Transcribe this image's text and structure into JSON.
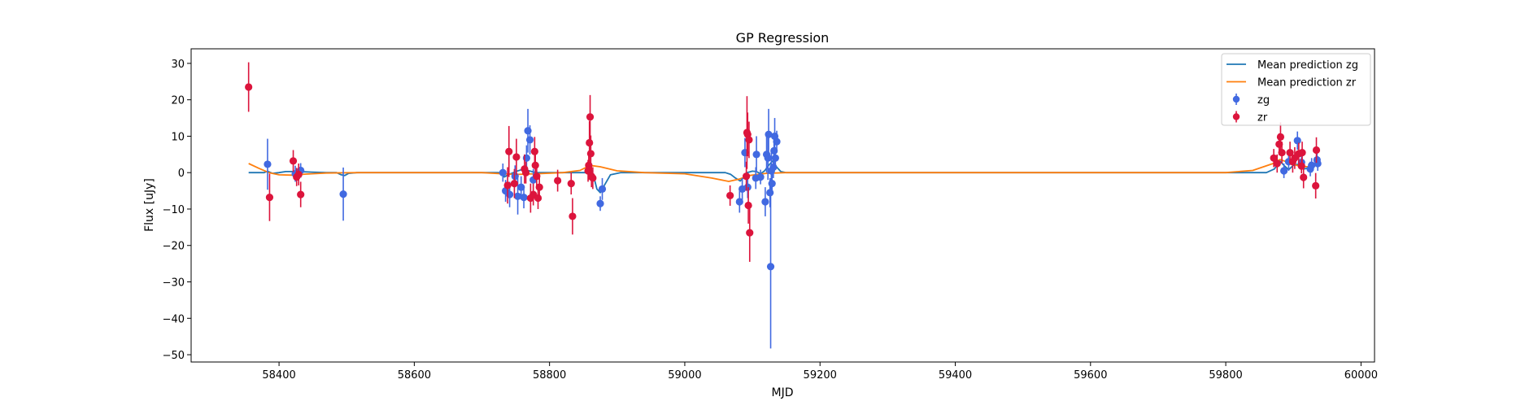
{
  "chart_data": {
    "type": "scatter",
    "title": "GP Regression",
    "xlabel": "MJD",
    "ylabel": "Flux [uJy]",
    "xlim": [
      58270,
      60020
    ],
    "ylim": [
      -52,
      34
    ],
    "xticks": [
      58400,
      58600,
      58800,
      59000,
      59200,
      59400,
      59600,
      59800,
      60000
    ],
    "yticks": [
      -50,
      -40,
      -30,
      -20,
      -10,
      0,
      10,
      20,
      30
    ],
    "xtick_labels": [
      "58400",
      "58600",
      "58800",
      "59000",
      "59200",
      "59400",
      "59600",
      "59800",
      "60000"
    ],
    "ytick_labels": [
      "−50",
      "−40",
      "−30",
      "−20",
      "−10",
      "0",
      "10",
      "20",
      "30"
    ],
    "grid": false,
    "legend": {
      "position": "top-right",
      "entries": [
        {
          "label": "Mean prediction zg",
          "kind": "line",
          "color": "#1f77b4"
        },
        {
          "label": "Mean prediction zr",
          "kind": "line",
          "color": "#ff7f0e"
        },
        {
          "label": "zg",
          "kind": "errorbar",
          "color": "#4169e1"
        },
        {
          "label": "zr",
          "kind": "errorbar",
          "color": "#dc143c"
        }
      ]
    },
    "lines": [
      {
        "name": "Mean prediction zg",
        "color": "#1f77b4",
        "points": [
          [
            58355,
            0.0
          ],
          [
            58378,
            0.0
          ],
          [
            58383,
            0.4
          ],
          [
            58390,
            -0.2
          ],
          [
            58400,
            0.0
          ],
          [
            58410,
            0.3
          ],
          [
            58425,
            0.3
          ],
          [
            58440,
            0.2
          ],
          [
            58470,
            0.0
          ],
          [
            58485,
            0.0
          ],
          [
            58492,
            -0.6
          ],
          [
            58497,
            -0.8
          ],
          [
            58503,
            -0.2
          ],
          [
            58515,
            0.0
          ],
          [
            58700,
            0.0
          ],
          [
            58725,
            0.0
          ],
          [
            58733,
            -1.2
          ],
          [
            58740,
            -0.5
          ],
          [
            58750,
            0.3
          ],
          [
            58762,
            1.0
          ],
          [
            58770,
            0.5
          ],
          [
            58780,
            0.0
          ],
          [
            58830,
            0.0
          ],
          [
            58855,
            0.0
          ],
          [
            58862,
            0.8
          ],
          [
            58866,
            -1.5
          ],
          [
            58870,
            -4.5
          ],
          [
            58875,
            -5.5
          ],
          [
            58881,
            -3.5
          ],
          [
            58890,
            -0.6
          ],
          [
            58905,
            0.0
          ],
          [
            59060,
            0.0
          ],
          [
            59068,
            -0.5
          ],
          [
            59075,
            -1.5
          ],
          [
            59082,
            -2.3
          ],
          [
            59088,
            -1.2
          ],
          [
            59092,
            0.0
          ],
          [
            59100,
            0.4
          ],
          [
            59106,
            0.3
          ],
          [
            59112,
            -0.3
          ],
          [
            59118,
            0.5
          ],
          [
            59124,
            2.0
          ],
          [
            59130,
            3.2
          ],
          [
            59136,
            1.5
          ],
          [
            59142,
            0.3
          ],
          [
            59150,
            0.0
          ],
          [
            59820,
            0.0
          ],
          [
            59860,
            0.0
          ],
          [
            59872,
            1.0
          ],
          [
            59880,
            3.2
          ],
          [
            59886,
            2.0
          ],
          [
            59893,
            0.8
          ],
          [
            59900,
            2.0
          ],
          [
            59906,
            2.3
          ],
          [
            59915,
            1.0
          ],
          [
            59925,
            1.3
          ],
          [
            59935,
            2.5
          ]
        ]
      },
      {
        "name": "Mean prediction zr",
        "color": "#ff7f0e",
        "points": [
          [
            58355,
            2.5
          ],
          [
            58370,
            1.2
          ],
          [
            58385,
            0.0
          ],
          [
            58400,
            -0.6
          ],
          [
            58420,
            -0.7
          ],
          [
            58440,
            -0.4
          ],
          [
            58470,
            -0.1
          ],
          [
            58520,
            0.0
          ],
          [
            58700,
            0.0
          ],
          [
            58730,
            -0.3
          ],
          [
            58750,
            -0.5
          ],
          [
            58780,
            -0.3
          ],
          [
            58820,
            0.0
          ],
          [
            58845,
            0.6
          ],
          [
            58860,
            2.0
          ],
          [
            58875,
            1.6
          ],
          [
            58900,
            0.5
          ],
          [
            58940,
            0.0
          ],
          [
            59000,
            -0.3
          ],
          [
            59040,
            -1.5
          ],
          [
            59065,
            -2.4
          ],
          [
            59080,
            -1.8
          ],
          [
            59095,
            -0.8
          ],
          [
            59120,
            -0.2
          ],
          [
            59150,
            0.0
          ],
          [
            59800,
            0.0
          ],
          [
            59840,
            0.6
          ],
          [
            59870,
            2.5
          ],
          [
            59880,
            3.6
          ],
          [
            59890,
            3.0
          ],
          [
            59905,
            2.0
          ],
          [
            59920,
            1.6
          ],
          [
            59935,
            2.0
          ]
        ]
      }
    ],
    "series": [
      {
        "name": "zg",
        "color": "#4169e1",
        "points": [
          {
            "x": 58383,
            "y": 2.3,
            "err": 7.0
          },
          {
            "x": 58424,
            "y": -0.3,
            "err": 2.2
          },
          {
            "x": 58432,
            "y": 0.6,
            "err": 2.0
          },
          {
            "x": 58495,
            "y": -5.9,
            "err": 7.3
          },
          {
            "x": 58731,
            "y": 0.0,
            "err": 2.5
          },
          {
            "x": 58735,
            "y": -5.0,
            "err": 3.0
          },
          {
            "x": 58741,
            "y": -6.0,
            "err": 3.5
          },
          {
            "x": 58749,
            "y": -1.0,
            "err": 3.0
          },
          {
            "x": 58753,
            "y": -6.5,
            "err": 5.0
          },
          {
            "x": 58758,
            "y": -4.0,
            "err": 3.0
          },
          {
            "x": 58762,
            "y": -6.8,
            "err": 3.0
          },
          {
            "x": 58766,
            "y": 4.0,
            "err": 3.5
          },
          {
            "x": 58768,
            "y": 11.5,
            "err": 6.0
          },
          {
            "x": 58771,
            "y": 9.0,
            "err": 4.0
          },
          {
            "x": 58776,
            "y": -2.0,
            "err": 3.0
          },
          {
            "x": 58875,
            "y": -8.5,
            "err": 2.0
          },
          {
            "x": 58878,
            "y": -4.5,
            "err": 3.0
          },
          {
            "x": 59081,
            "y": -8.0,
            "err": 3.0
          },
          {
            "x": 59085,
            "y": -4.5,
            "err": 3.0
          },
          {
            "x": 59089,
            "y": 5.5,
            "err": 4.0
          },
          {
            "x": 59093,
            "y": -4.0,
            "err": 3.0
          },
          {
            "x": 59105,
            "y": -1.5,
            "err": 3.0
          },
          {
            "x": 59106,
            "y": 5.0,
            "err": 5.0
          },
          {
            "x": 59112,
            "y": -1.2,
            "err": 2.0
          },
          {
            "x": 59119,
            "y": -8.0,
            "err": 4.0
          },
          {
            "x": 59121,
            "y": 5.0,
            "err": 5.0
          },
          {
            "x": 59123,
            "y": 4.0,
            "err": 6.0
          },
          {
            "x": 59124,
            "y": 10.5,
            "err": 7.0
          },
          {
            "x": 59126,
            "y": -5.5,
            "err": 4.0
          },
          {
            "x": 59127,
            "y": -25.8,
            "err": 22.5
          },
          {
            "x": 59128,
            "y": 0.5,
            "err": 5.0
          },
          {
            "x": 59129,
            "y": -3.0,
            "err": 3.0
          },
          {
            "x": 59131,
            "y": 1.5,
            "err": 3.0
          },
          {
            "x": 59132,
            "y": 6.0,
            "err": 4.0
          },
          {
            "x": 59133,
            "y": 10.0,
            "err": 5.0
          },
          {
            "x": 59134,
            "y": 4.0,
            "err": 3.0
          },
          {
            "x": 59136,
            "y": 8.5,
            "err": 3.0
          },
          {
            "x": 59886,
            "y": 0.5,
            "err": 2.0
          },
          {
            "x": 59893,
            "y": 3.0,
            "err": 2.5
          },
          {
            "x": 59906,
            "y": 8.8,
            "err": 2.5
          },
          {
            "x": 59912,
            "y": 2.8,
            "err": 2.0
          },
          {
            "x": 59925,
            "y": 1.0,
            "err": 2.0
          },
          {
            "x": 59927,
            "y": 2.0,
            "err": 2.0
          },
          {
            "x": 59935,
            "y": 3.5,
            "err": 2.0
          },
          {
            "x": 59936,
            "y": 2.5,
            "err": 2.0
          }
        ]
      },
      {
        "name": "zr",
        "color": "#dc143c",
        "points": [
          {
            "x": 58355,
            "y": 23.5,
            "err": 6.8
          },
          {
            "x": 58386,
            "y": -6.8,
            "err": 6.5
          },
          {
            "x": 58421,
            "y": 3.2,
            "err": 3.0
          },
          {
            "x": 58426,
            "y": -1.2,
            "err": 2.5
          },
          {
            "x": 58429,
            "y": -0.5,
            "err": 3.0
          },
          {
            "x": 58432,
            "y": -6.0,
            "err": 3.5
          },
          {
            "x": 58738,
            "y": -3.5,
            "err": 5.0
          },
          {
            "x": 58740,
            "y": 5.8,
            "err": 7.0
          },
          {
            "x": 58748,
            "y": -3.0,
            "err": 4.0
          },
          {
            "x": 58751,
            "y": 4.3,
            "err": 5.0
          },
          {
            "x": 58763,
            "y": 1.0,
            "err": 4.0
          },
          {
            "x": 58765,
            "y": 0.0,
            "err": 3.0
          },
          {
            "x": 58772,
            "y": -7.0,
            "err": 4.0
          },
          {
            "x": 58776,
            "y": -6.0,
            "err": 3.0
          },
          {
            "x": 58778,
            "y": 5.8,
            "err": 4.0
          },
          {
            "x": 58779,
            "y": 2.0,
            "err": 3.0
          },
          {
            "x": 58781,
            "y": -1.0,
            "err": 3.0
          },
          {
            "x": 58783,
            "y": -7.0,
            "err": 3.0
          },
          {
            "x": 58785,
            "y": -4.0,
            "err": 3.0
          },
          {
            "x": 58812,
            "y": -2.2,
            "err": 3.0
          },
          {
            "x": 58832,
            "y": -3.0,
            "err": 3.0
          },
          {
            "x": 58834,
            "y": -12.0,
            "err": 5.0
          },
          {
            "x": 58857,
            "y": 0.5,
            "err": 3.0
          },
          {
            "x": 58858,
            "y": 2.0,
            "err": 4.0
          },
          {
            "x": 58859,
            "y": 8.2,
            "err": 6.0
          },
          {
            "x": 58860,
            "y": 15.3,
            "err": 6.0
          },
          {
            "x": 58861,
            "y": 5.2,
            "err": 5.0
          },
          {
            "x": 58862,
            "y": -1.0,
            "err": 3.0
          },
          {
            "x": 58864,
            "y": -1.5,
            "err": 3.0
          },
          {
            "x": 59067,
            "y": -6.3,
            "err": 2.8
          },
          {
            "x": 59091,
            "y": -1.0,
            "err": 4.0
          },
          {
            "x": 59092,
            "y": 11.0,
            "err": 10.0
          },
          {
            "x": 59093,
            "y": 10.5,
            "err": 6.0
          },
          {
            "x": 59095,
            "y": 9.0,
            "err": 5.0
          },
          {
            "x": 59096,
            "y": -16.5,
            "err": 8.0
          },
          {
            "x": 59094,
            "y": -9.0,
            "err": 5.0
          },
          {
            "x": 59871,
            "y": 4.0,
            "err": 2.5
          },
          {
            "x": 59876,
            "y": 2.5,
            "err": 2.5
          },
          {
            "x": 59879,
            "y": 7.8,
            "err": 3.0
          },
          {
            "x": 59881,
            "y": 9.8,
            "err": 4.0
          },
          {
            "x": 59883,
            "y": 5.5,
            "err": 3.0
          },
          {
            "x": 59895,
            "y": 5.5,
            "err": 3.0
          },
          {
            "x": 59899,
            "y": 3.0,
            "err": 3.0
          },
          {
            "x": 59902,
            "y": 4.0,
            "err": 3.0
          },
          {
            "x": 59908,
            "y": 5.2,
            "err": 3.0
          },
          {
            "x": 59912,
            "y": 1.8,
            "err": 2.0
          },
          {
            "x": 59913,
            "y": 5.5,
            "err": 3.0
          },
          {
            "x": 59915,
            "y": -1.3,
            "err": 3.0
          },
          {
            "x": 59933,
            "y": -3.6,
            "err": 3.5
          },
          {
            "x": 59934,
            "y": 6.2,
            "err": 3.5
          }
        ]
      }
    ]
  }
}
